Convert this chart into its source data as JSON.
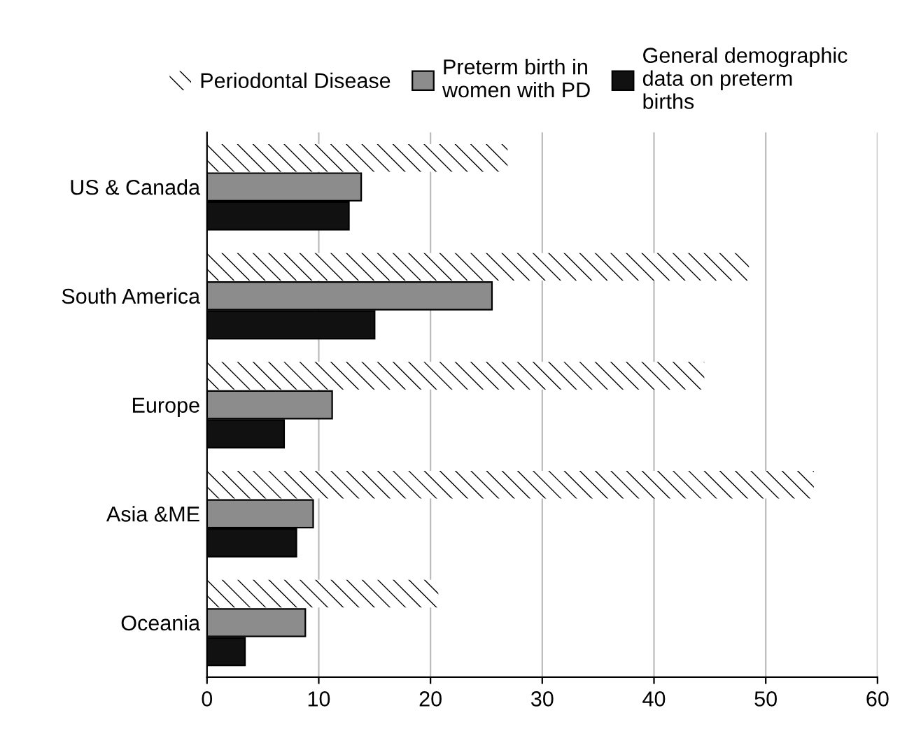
{
  "chart_data": {
    "type": "bar",
    "orientation": "horizontal",
    "categories": [
      "US & Canada",
      "South America",
      "Europe",
      "Asia &ME",
      "Oceania"
    ],
    "series": [
      {
        "name": "Periodontal Disease",
        "color": "#ffffff",
        "values": [
          26.9,
          48.5,
          44.5,
          54.3,
          20.7
        ]
      },
      {
        "name": "Preterm birth in\nwomen with PD",
        "color": "#8c8c8c",
        "values": [
          13.8,
          25.5,
          11.2,
          9.5,
          8.8
        ]
      },
      {
        "name": "General demographic\ndata on preterm\nbirths",
        "color": "#111111",
        "values": [
          12.7,
          15.0,
          6.9,
          8.0,
          3.4
        ]
      }
    ],
    "xlim": [
      0,
      60
    ],
    "xticks": [
      0,
      10,
      20,
      30,
      40,
      50,
      60
    ],
    "grid": "x",
    "legend": "top"
  }
}
